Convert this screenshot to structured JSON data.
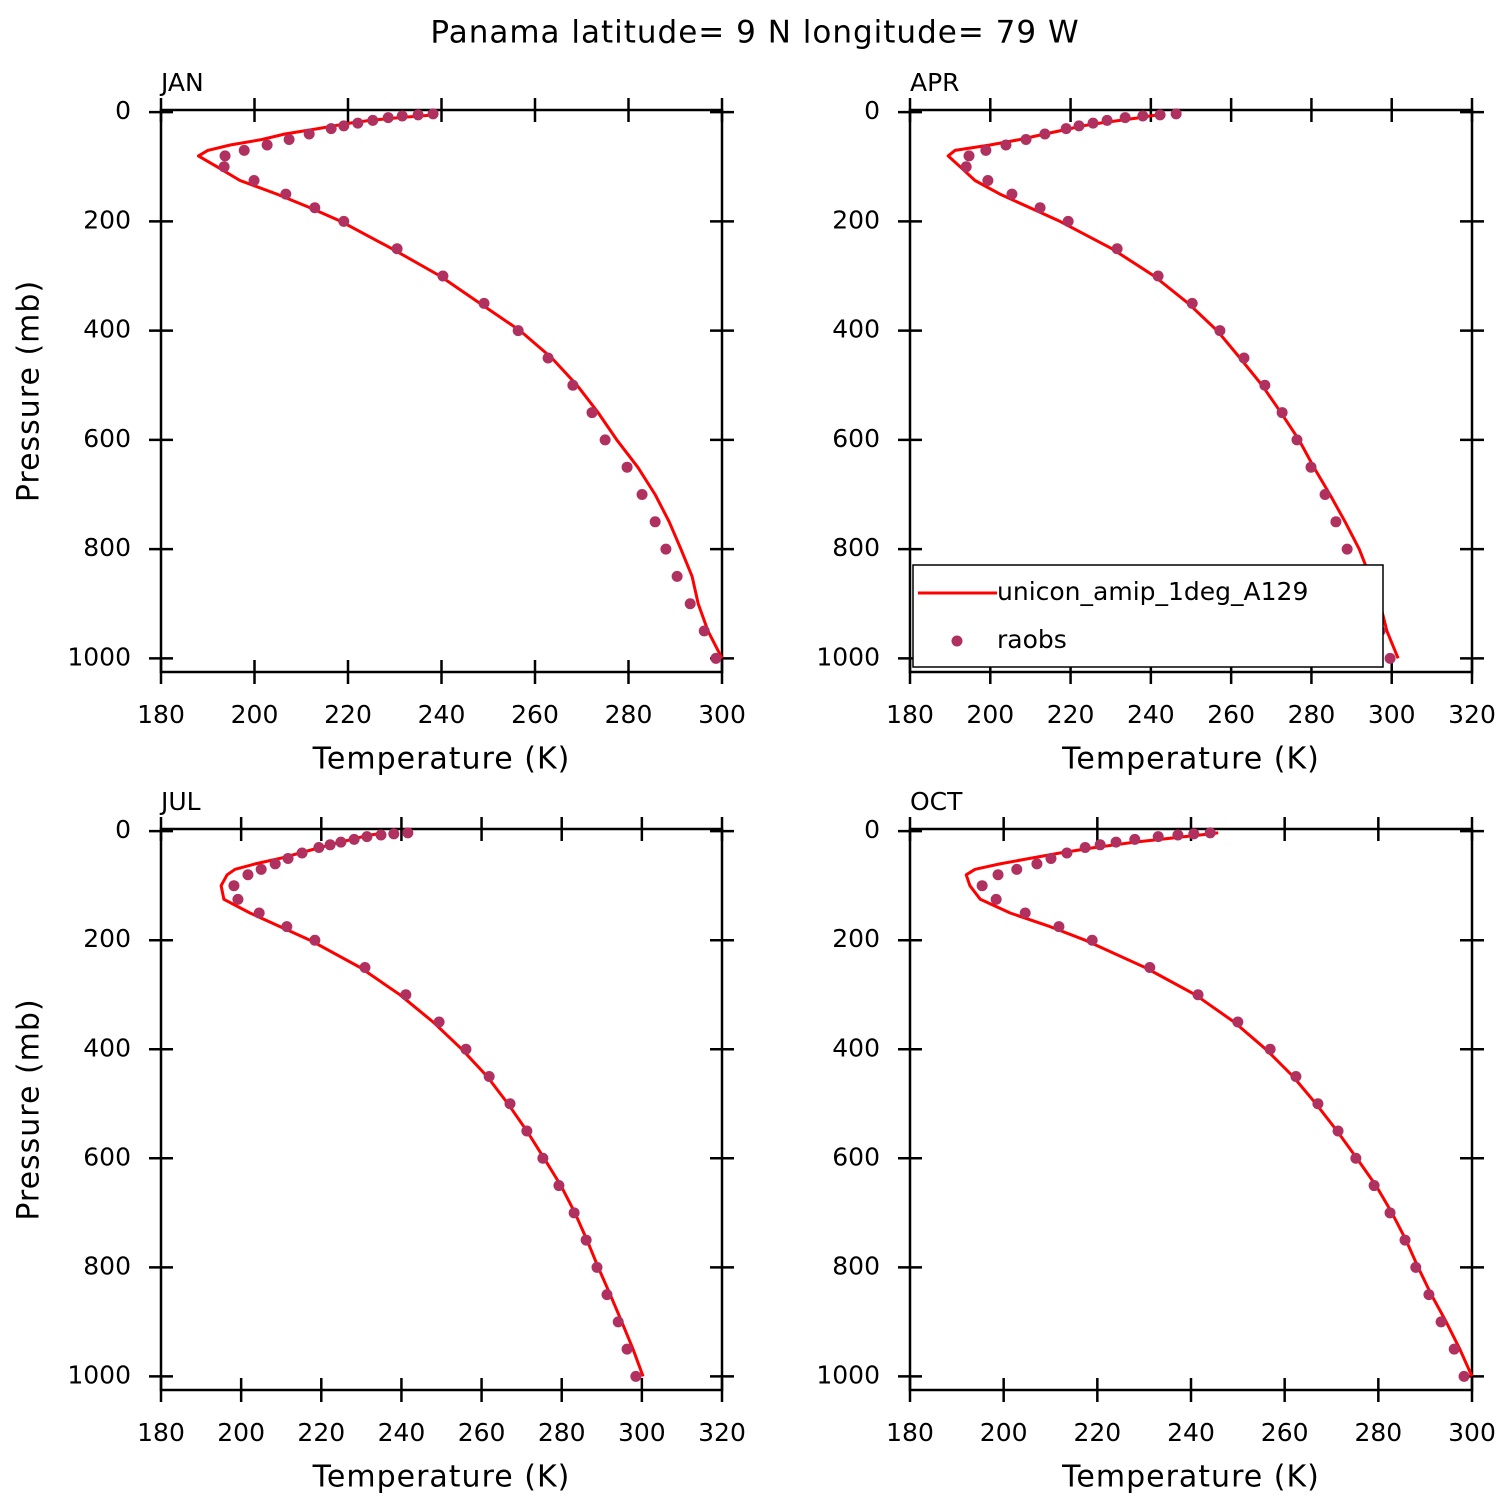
{
  "title": "Panama  latitude= 9 N longitude= 79 W",
  "chart_data": [
    {
      "type": "line",
      "title": "JAN",
      "xlabel": "Temperature (K)",
      "ylabel": "Pressure (mb)",
      "xlim": [
        180,
        300
      ],
      "ylim": [
        1025,
        -4
      ],
      "xticks": [
        180,
        200,
        220,
        240,
        260,
        280,
        300
      ],
      "yticks": [
        0,
        200,
        400,
        600,
        800,
        1000
      ],
      "y": [
        1000,
        950,
        900,
        850,
        800,
        750,
        700,
        650,
        600,
        550,
        500,
        450,
        400,
        350,
        300,
        250,
        200,
        175,
        150,
        125,
        100,
        80,
        70,
        60,
        50,
        40,
        30,
        25,
        20,
        15,
        10,
        7,
        5,
        3
      ],
      "series": [
        {
          "kind": "line",
          "color": "#ff0000",
          "values": [
            300.0,
            297.0,
            294.9,
            293.6,
            291.2,
            288.7,
            285.7,
            282.0,
            277.5,
            273.5,
            269.0,
            263.6,
            256.8,
            248.2,
            239.7,
            229.4,
            218.5,
            211.9,
            204.8,
            196.9,
            192.0,
            188.0,
            190.0,
            194.8,
            201.6,
            206.5,
            213.6,
            217.0,
            220.4,
            224.7,
            231.0,
            235.4,
            238.6,
            239.0
          ]
        },
        {
          "kind": "scatter",
          "color": "#b03060",
          "values": [
            298.7,
            296.2,
            293.2,
            290.4,
            288.0,
            285.7,
            282.9,
            279.7,
            275.0,
            272.2,
            268.1,
            262.8,
            256.4,
            249.1,
            240.3,
            230.5,
            219.1,
            212.9,
            206.7,
            199.9,
            193.5,
            193.7,
            197.8,
            202.7,
            207.4,
            211.7,
            216.4,
            219.1,
            222.1,
            225.3,
            228.6,
            231.6,
            235.0,
            238.2
          ]
        }
      ]
    },
    {
      "type": "line",
      "title": "APR",
      "xlabel": "Temperature (K)",
      "legend": "lower left",
      "xlim": [
        180,
        320
      ],
      "ylim": [
        1025,
        -4
      ],
      "xticks": [
        180,
        200,
        220,
        240,
        260,
        280,
        300,
        320
      ],
      "yticks": [
        0,
        200,
        400,
        600,
        800,
        1000
      ],
      "y": [
        1000,
        950,
        900,
        850,
        800,
        750,
        700,
        650,
        600,
        550,
        500,
        450,
        400,
        350,
        300,
        250,
        200,
        175,
        150,
        125,
        100,
        80,
        70,
        60,
        50,
        40,
        30,
        25,
        20,
        15,
        10,
        7,
        5,
        3
      ],
      "series": [
        {
          "name": "unicon_amip_1deg_A129",
          "kind": "line",
          "color": "#ff0000",
          "values": [
            301.6,
            298.8,
            297.1,
            294.6,
            291.9,
            288.4,
            284.6,
            280.6,
            276.9,
            272.4,
            267.7,
            262.2,
            256.5,
            249.3,
            240.8,
            230.3,
            217.4,
            209.9,
            202.4,
            196.2,
            192.5,
            189.5,
            191.2,
            199.9,
            207.4,
            213.6,
            219.9,
            223.1,
            227.3,
            232.3,
            237.3,
            239.8,
            241.8,
            243.5
          ]
        },
        {
          "name": "raobs",
          "kind": "scatter",
          "color": "#b03060",
          "values": [
            299.6,
            297.1,
            293.9,
            291.1,
            288.9,
            286.1,
            283.4,
            279.9,
            276.4,
            272.7,
            268.4,
            263.2,
            257.2,
            250.3,
            241.8,
            231.6,
            219.4,
            212.4,
            205.4,
            199.4,
            194.0,
            194.7,
            198.9,
            203.9,
            208.9,
            213.6,
            218.9,
            222.1,
            225.6,
            229.1,
            233.6,
            238.0,
            242.3,
            246.3
          ]
        }
      ]
    },
    {
      "type": "line",
      "title": "JUL",
      "xlabel": "Temperature (K)",
      "ylabel": "Pressure (mb)",
      "xlim": [
        180,
        320
      ],
      "ylim": [
        1025,
        -4
      ],
      "xticks": [
        180,
        200,
        220,
        240,
        260,
        280,
        300,
        320
      ],
      "yticks": [
        0,
        200,
        400,
        600,
        800,
        1000
      ],
      "y": [
        1000,
        950,
        900,
        850,
        800,
        750,
        700,
        650,
        600,
        550,
        500,
        450,
        400,
        350,
        300,
        250,
        200,
        175,
        150,
        125,
        100,
        80,
        70,
        60,
        50,
        40,
        30,
        25,
        20,
        15,
        10,
        7,
        5,
        3
      ],
      "series": [
        {
          "kind": "line",
          "color": "#ff0000",
          "values": [
            300.3,
            297.8,
            295.0,
            292.1,
            289.1,
            286.3,
            283.3,
            279.8,
            275.6,
            271.3,
            266.6,
            261.4,
            255.1,
            247.9,
            239.6,
            229.7,
            217.2,
            209.7,
            202.2,
            195.7,
            195.0,
            196.5,
            198.5,
            203.5,
            209.7,
            214.7,
            219.7,
            222.2,
            224.7,
            227.7,
            230.4,
            232.2,
            234.2,
            235.9
          ]
        },
        {
          "kind": "scatter",
          "color": "#b03060",
          "values": [
            298.5,
            296.3,
            294.1,
            291.3,
            288.8,
            286.1,
            283.1,
            279.3,
            275.3,
            271.3,
            267.1,
            261.9,
            256.1,
            249.4,
            241.1,
            230.9,
            218.4,
            211.4,
            204.5,
            199.2,
            198.2,
            201.7,
            205.0,
            208.5,
            211.7,
            215.2,
            219.4,
            222.2,
            224.9,
            228.2,
            231.4,
            234.9,
            238.1,
            241.6
          ]
        }
      ]
    },
    {
      "type": "line",
      "title": "OCT",
      "xlabel": "Temperature (K)",
      "xlim": [
        180,
        300
      ],
      "ylim": [
        1025,
        -4
      ],
      "xticks": [
        180,
        200,
        220,
        240,
        260,
        280,
        300
      ],
      "yticks": [
        0,
        200,
        400,
        600,
        800,
        1000
      ],
      "y": [
        1000,
        950,
        900,
        850,
        800,
        750,
        700,
        650,
        600,
        550,
        500,
        450,
        400,
        350,
        300,
        250,
        200,
        175,
        150,
        125,
        100,
        80,
        70,
        60,
        50,
        40,
        30,
        25,
        20,
        15,
        10,
        7,
        5,
        3
      ],
      "series": [
        {
          "kind": "line",
          "color": "#ff0000",
          "values": [
            300.0,
            297.4,
            294.5,
            291.3,
            288.5,
            285.9,
            282.9,
            279.5,
            275.4,
            271.2,
            266.7,
            261.8,
            256.0,
            249.2,
            240.9,
            230.2,
            217.4,
            209.9,
            201.4,
            195.0,
            192.8,
            192.0,
            193.9,
            199.2,
            205.6,
            212.0,
            219.5,
            223.8,
            228.0,
            233.4,
            238.7,
            241.9,
            244.1,
            245.8
          ]
        },
        {
          "kind": "scatter",
          "color": "#b03060",
          "values": [
            298.3,
            296.2,
            293.4,
            290.8,
            288.0,
            285.7,
            282.5,
            279.1,
            275.2,
            271.4,
            267.1,
            262.4,
            256.9,
            250.0,
            241.5,
            231.2,
            218.9,
            211.8,
            204.6,
            198.4,
            195.4,
            198.8,
            202.8,
            207.1,
            210.1,
            213.5,
            217.4,
            220.6,
            224.0,
            228.0,
            233.0,
            237.2,
            240.6,
            244.1
          ]
        }
      ]
    }
  ]
}
